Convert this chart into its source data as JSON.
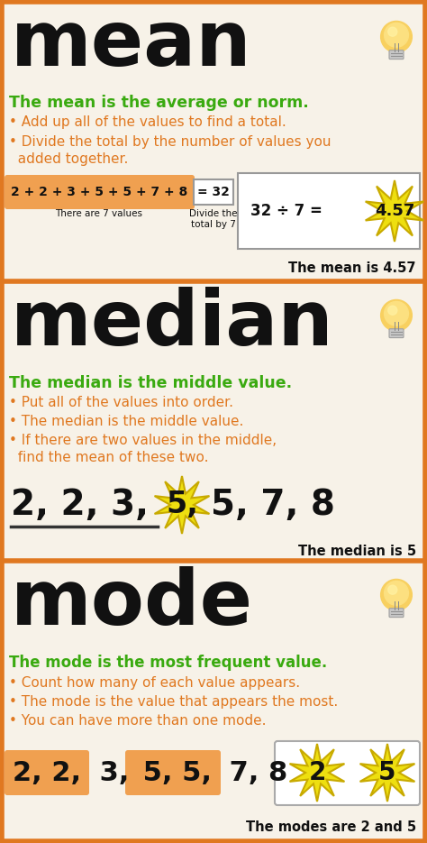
{
  "bg_color": "#f7f2e8",
  "border_color": "#e07820",
  "section_divider_color": "#e07820",
  "title_color": "#111111",
  "green_color": "#3aaa10",
  "orange_color": "#e07820",
  "black_color": "#111111",
  "star_color": "#eedf10",
  "star_border": "#c8aa00",
  "orange_box_color": "#f0a050",
  "section1": {
    "title": "mean",
    "subtitle": "The mean is the average or norm.",
    "bullet1": "• Add up all of the values to find a total.",
    "bullet2": "• Divide the total by the number of values you",
    "bullet2b": "  added together.",
    "formula_left": "2 + 2 + 3 + 5 + 5 + 7 + 8",
    "formula_label1": "There are 7 values",
    "formula_label2": "Divide the\ntotal by 7",
    "formula_right": "32 ÷ 7 =",
    "answer": "4.57",
    "result": "The mean is 4.57"
  },
  "section2": {
    "title": "median",
    "subtitle": "The median is the middle value.",
    "bullet1": "• Put all of the values into order.",
    "bullet2": "• The median is the middle value.",
    "bullet3": "• If there are two values in the middle,",
    "bullet3b": "  find the mean of these two.",
    "seq_before": "2, 2, 3,",
    "seq_highlight": "5,",
    "seq_after": "5, 7, 8",
    "result": "The median is 5"
  },
  "section3": {
    "title": "mode",
    "subtitle": "The mode is the most frequent value.",
    "bullet1": "• Count how many of each value appears.",
    "bullet2": "• The mode is the value that appears the most.",
    "bullet3": "• You can have more than one mode.",
    "seq_hl1": "2, 2,",
    "seq_plain1": " 3,",
    "seq_hl2": " 5, 5,",
    "seq_plain2": " 7, 8",
    "mode_values": [
      "2",
      "5"
    ],
    "result": "The modes are 2 and 5"
  }
}
